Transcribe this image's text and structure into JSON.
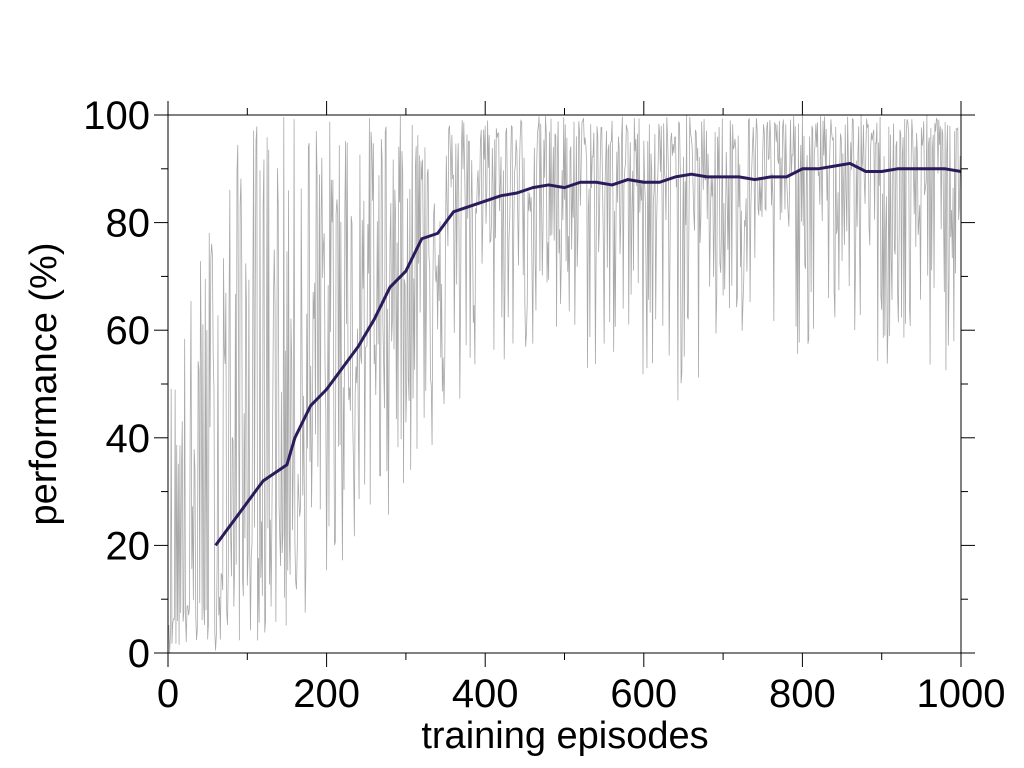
{
  "chart_data": {
    "type": "line",
    "xlabel": "training episodes",
    "ylabel": "performance (%)",
    "xlim": [
      0,
      1000
    ],
    "ylim": [
      0,
      100
    ],
    "x_ticks": [
      0,
      200,
      400,
      600,
      800,
      1000
    ],
    "y_ticks": [
      0,
      20,
      40,
      60,
      80,
      100
    ],
    "x_minor_ticks": [
      100,
      300,
      500,
      700,
      900
    ],
    "y_minor_ticks": [
      10,
      30,
      50,
      70,
      90
    ],
    "grid": false,
    "legend": "none",
    "series": [
      {
        "role": "raw",
        "color": "#a9a9a9",
        "x_start": 1,
        "x_step": 1,
        "envelope": {
          "x": [
            0,
            50,
            100,
            150,
            200,
            250,
            300,
            350,
            400,
            450,
            500,
            550,
            600,
            650,
            700,
            750,
            800,
            850,
            900,
            950,
            1000
          ],
          "mean": [
            6,
            12,
            22,
            30,
            46,
            57,
            70,
            79,
            84,
            86,
            87,
            87,
            88,
            88.5,
            88.5,
            88.5,
            89.5,
            90,
            90,
            90,
            90
          ],
          "low": [
            0,
            0,
            2,
            2,
            12,
            20,
            30,
            40,
            50,
            55,
            52,
            50,
            50,
            45,
            55,
            55,
            55,
            60,
            50,
            50,
            50
          ],
          "high": [
            50,
            80,
            100,
            100,
            100,
            100,
            100,
            100,
            100,
            100,
            100,
            100,
            100,
            100,
            100,
            100,
            100,
            100,
            100,
            100,
            100
          ]
        }
      },
      {
        "role": "moving-average",
        "color": "#2b1b5b",
        "x": [
          60,
          80,
          100,
          120,
          140,
          150,
          160,
          180,
          200,
          220,
          240,
          260,
          280,
          300,
          320,
          340,
          360,
          380,
          400,
          420,
          440,
          460,
          480,
          500,
          520,
          540,
          560,
          580,
          600,
          620,
          640,
          660,
          680,
          700,
          720,
          740,
          760,
          780,
          800,
          820,
          840,
          860,
          880,
          900,
          920,
          940,
          960,
          980,
          1000
        ],
        "values": [
          20,
          24,
          28,
          32,
          34,
          35,
          40,
          46,
          49,
          53,
          57,
          62,
          68,
          71,
          77,
          78,
          82,
          83,
          84,
          85,
          85.5,
          86.5,
          87,
          86.5,
          87.5,
          87.5,
          87,
          88,
          87.5,
          87.5,
          88.5,
          89,
          88.5,
          88.5,
          88.5,
          88,
          88.5,
          88.5,
          90,
          90,
          90.5,
          91,
          89.5,
          89.5,
          90,
          90,
          90,
          90,
          89.5
        ]
      }
    ]
  }
}
